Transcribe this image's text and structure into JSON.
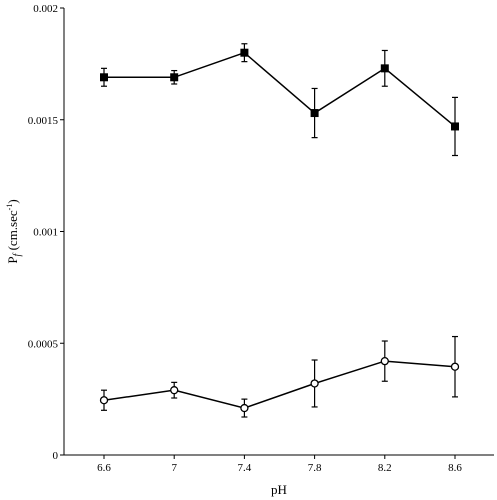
{
  "chart_data": {
    "type": "line",
    "title": "",
    "xlabel": "pH",
    "ylabel": {
      "main": "P",
      "subscript": "f",
      "unit_prefix": " (cm.sec",
      "unit_exponent": "-1",
      "unit_suffix": ")"
    },
    "x": [
      6.6,
      7,
      7.4,
      7.8,
      8.2,
      8.6
    ],
    "x_tick_labels": [
      "6.6",
      "7",
      "7.4",
      "7.8",
      "8.2",
      "8.6"
    ],
    "y_ticks": [
      0,
      0.0005,
      0.001,
      0.0015,
      0.002
    ],
    "y_tick_labels": [
      "0",
      "0.0005",
      "0.001",
      "0.0015",
      "0.002"
    ],
    "ylim": [
      0,
      0.002
    ],
    "grid": false,
    "legend": "none",
    "series": [
      {
        "marker": "square-filled",
        "color": "#000000",
        "values": [
          0.00169,
          0.00169,
          0.0018,
          0.00153,
          0.00173,
          0.00147
        ],
        "errors": [
          4e-05,
          3e-05,
          4e-05,
          0.00011,
          8e-05,
          0.00013
        ]
      },
      {
        "marker": "circle-open",
        "color": "#000000",
        "values": [
          0.000245,
          0.00029,
          0.00021,
          0.00032,
          0.00042,
          0.000395
        ],
        "errors": [
          4.5e-05,
          3.5e-05,
          4e-05,
          0.000105,
          9e-05,
          0.000135
        ]
      }
    ]
  }
}
